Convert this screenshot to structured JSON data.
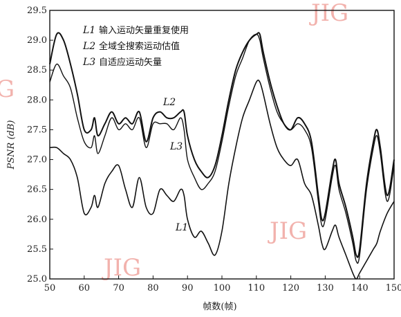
{
  "watermarks": [
    "JIG",
    "G",
    "JIG",
    "JIG"
  ],
  "chart_data": {
    "type": "line",
    "xlabel": "帧数(帧)",
    "ylabel": "PSNR (dB)",
    "xlim": [
      50,
      150
    ],
    "ylim": [
      25.0,
      29.5
    ],
    "x_ticks": [
      "50",
      "60",
      "70",
      "80",
      "90",
      "100",
      "110",
      "120",
      "130",
      "140",
      "150"
    ],
    "y_ticks": [
      "25.0",
      "25.5",
      "26.0",
      "26.5",
      "27.0",
      "27.5",
      "28.0",
      "28.5",
      "29.0",
      "29.5"
    ],
    "legend_position": "top-left",
    "legend": [
      {
        "key": "L1",
        "text": "输入运动矢量重复使用"
      },
      {
        "key": "L2",
        "text": "全域全搜索运动估值"
      },
      {
        "key": "L3",
        "text": "自适应运动矢量"
      }
    ],
    "series": [
      {
        "name": "L2",
        "label": "L2",
        "x": [
          50,
          52,
          54,
          56,
          58,
          60,
          62,
          63,
          64,
          66,
          68,
          70,
          72,
          74,
          76,
          78,
          80,
          82,
          84,
          86,
          88,
          89,
          90,
          92,
          94,
          96,
          98,
          100,
          102,
          104,
          106,
          108,
          110,
          111,
          112,
          114,
          116,
          118,
          120,
          122,
          124,
          126,
          128,
          129,
          130,
          132,
          133,
          134,
          136,
          138,
          139,
          140,
          142,
          144,
          145,
          146,
          148,
          150
        ],
        "values": [
          28.6,
          29.1,
          29.0,
          28.6,
          28.1,
          27.5,
          27.5,
          27.7,
          27.4,
          27.6,
          27.8,
          27.6,
          27.7,
          27.6,
          27.8,
          27.3,
          27.7,
          27.8,
          27.7,
          27.7,
          27.8,
          27.8,
          27.4,
          27.0,
          26.8,
          26.7,
          26.9,
          27.4,
          28.0,
          28.5,
          28.8,
          29.0,
          29.1,
          29.1,
          28.8,
          28.3,
          27.9,
          27.6,
          27.5,
          27.7,
          27.6,
          27.3,
          26.4,
          26.0,
          26.1,
          26.8,
          27.0,
          26.6,
          26.2,
          25.7,
          25.4,
          25.5,
          26.6,
          27.3,
          27.5,
          27.2,
          26.4,
          27.0
        ]
      },
      {
        "name": "L3",
        "label": "L3",
        "x": [
          50,
          52,
          54,
          56,
          58,
          60,
          62,
          63,
          64,
          66,
          68,
          70,
          72,
          74,
          76,
          78,
          80,
          82,
          84,
          86,
          88,
          89,
          90,
          92,
          94,
          96,
          98,
          100,
          102,
          104,
          106,
          108,
          110,
          111,
          112,
          114,
          116,
          118,
          120,
          122,
          124,
          126,
          128,
          129,
          130,
          132,
          133,
          134,
          136,
          138,
          139,
          140,
          142,
          144,
          145,
          146,
          148,
          150
        ],
        "values": [
          28.3,
          28.6,
          28.4,
          28.2,
          27.7,
          27.3,
          27.2,
          27.4,
          27.1,
          27.4,
          27.7,
          27.5,
          27.6,
          27.5,
          27.7,
          27.2,
          27.6,
          27.6,
          27.6,
          27.5,
          27.7,
          27.5,
          27.0,
          26.7,
          26.5,
          26.6,
          26.8,
          27.3,
          27.9,
          28.4,
          28.7,
          29.0,
          29.1,
          29.0,
          28.7,
          28.2,
          27.8,
          27.6,
          27.5,
          27.6,
          27.5,
          27.2,
          26.3,
          25.9,
          26.0,
          26.7,
          26.9,
          26.5,
          26.1,
          25.6,
          25.3,
          25.4,
          26.5,
          27.2,
          27.4,
          27.1,
          26.3,
          26.9
        ]
      },
      {
        "name": "L1",
        "label": "L1",
        "x": [
          50,
          52,
          54,
          56,
          58,
          60,
          62,
          63,
          64,
          66,
          68,
          70,
          72,
          74,
          76,
          78,
          80,
          82,
          84,
          86,
          88,
          89,
          90,
          92,
          94,
          96,
          98,
          100,
          102,
          104,
          106,
          108,
          110,
          111,
          112,
          114,
          116,
          118,
          120,
          122,
          124,
          126,
          128,
          129,
          130,
          132,
          133,
          134,
          136,
          138,
          139,
          140,
          142,
          144,
          145,
          146,
          148,
          150
        ],
        "values": [
          27.2,
          27.2,
          27.1,
          27.0,
          26.7,
          26.1,
          26.2,
          26.4,
          26.2,
          26.6,
          26.8,
          26.9,
          26.5,
          26.2,
          26.7,
          26.2,
          26.1,
          26.5,
          26.4,
          26.3,
          26.5,
          26.4,
          26.0,
          25.7,
          25.8,
          25.6,
          25.4,
          25.8,
          26.6,
          27.2,
          27.7,
          28.0,
          28.3,
          28.3,
          28.1,
          27.6,
          27.2,
          27.0,
          26.9,
          27.0,
          26.6,
          26.4,
          25.9,
          25.6,
          25.5,
          25.8,
          25.9,
          25.7,
          25.4,
          25.1,
          25.0,
          25.1,
          25.3,
          25.5,
          25.6,
          25.8,
          26.1,
          26.3
        ]
      }
    ]
  }
}
